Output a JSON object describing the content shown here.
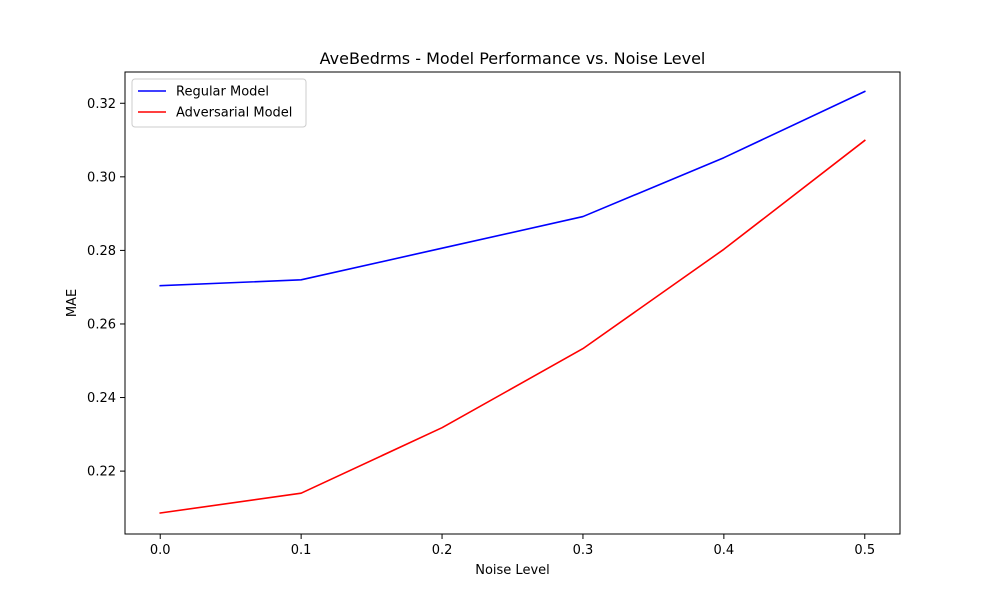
{
  "chart_data": {
    "type": "line",
    "title": "AveBedrms - Model Performance vs. Noise Level",
    "xlabel": "Noise Level",
    "ylabel": "MAE",
    "x": [
      0.0,
      0.1,
      0.2,
      0.3,
      0.4,
      0.5
    ],
    "xticks": [
      "0.0",
      "0.1",
      "0.2",
      "0.3",
      "0.4",
      "0.5"
    ],
    "yticks": [
      "0.22",
      "0.24",
      "0.26",
      "0.28",
      "0.30",
      "0.32"
    ],
    "ytick_values": [
      0.22,
      0.24,
      0.26,
      0.28,
      0.3,
      0.32
    ],
    "xlim": [
      -0.025,
      0.525
    ],
    "ylim": [
      0.2029,
      0.3285
    ],
    "grid": false,
    "legend_position": "top-left",
    "series": [
      {
        "name": "Regular Model",
        "color": "#0000ff",
        "values": [
          0.2704,
          0.272,
          0.2806,
          0.2892,
          0.3052,
          0.3232
        ]
      },
      {
        "name": "Adversarial Model",
        "color": "#ff0000",
        "values": [
          0.2086,
          0.214,
          0.2318,
          0.2533,
          0.2803,
          0.3099
        ]
      }
    ]
  }
}
